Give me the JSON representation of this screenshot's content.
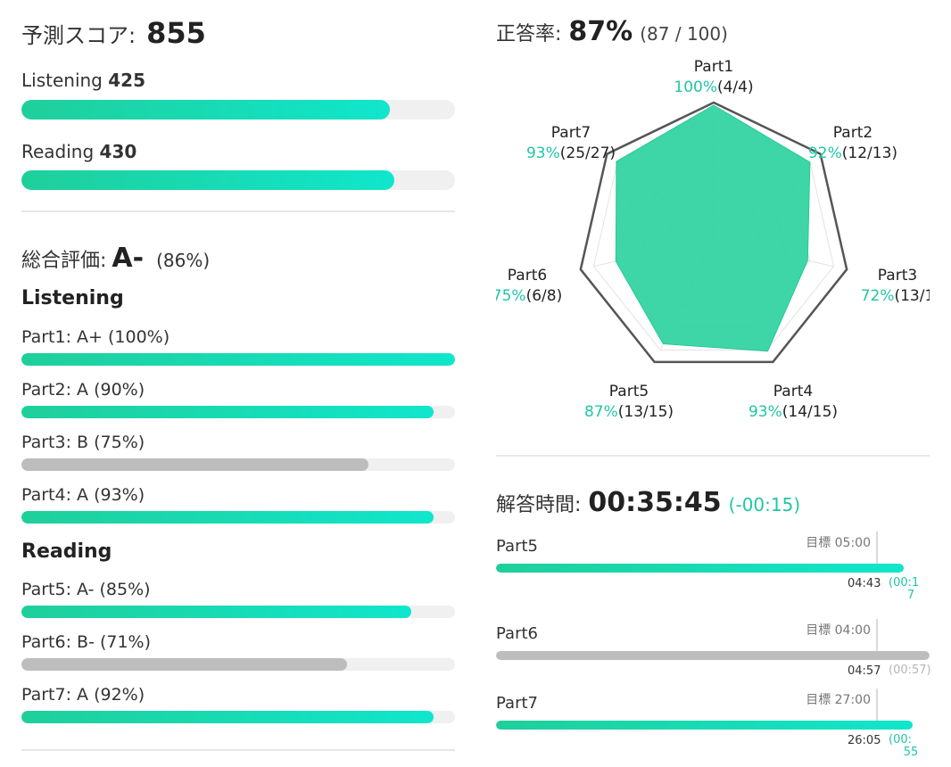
{
  "score": {
    "label": "予測スコア:",
    "value": "855",
    "listening_label": "Listening",
    "listening_value": "425",
    "listening_fraction": 0.85,
    "reading_label": "Reading",
    "reading_value": "430",
    "reading_fraction": 0.86
  },
  "grade": {
    "label": "総合評価:",
    "value": "A-",
    "percent": "(86%)",
    "listening_heading": "Listening",
    "reading_heading": "Reading",
    "parts": [
      {
        "label": "Part1: A+ (100%)",
        "fraction": 1.0,
        "color": "teal"
      },
      {
        "label": "Part2: A (90%)",
        "fraction": 0.95,
        "color": "teal"
      },
      {
        "label": "Part3: B (75%)",
        "fraction": 0.8,
        "color": "gray"
      },
      {
        "label": "Part4: A (93%)",
        "fraction": 0.95,
        "color": "teal"
      },
      {
        "label": "Part5: A- (85%)",
        "fraction": 0.9,
        "color": "teal"
      },
      {
        "label": "Part6: B- (71%)",
        "fraction": 0.75,
        "color": "gray"
      },
      {
        "label": "Part7: A (92%)",
        "fraction": 0.95,
        "color": "teal"
      }
    ]
  },
  "accuracy": {
    "label": "正答率:",
    "value": "87%",
    "detail": "(87 / 100)",
    "parts": [
      {
        "name": "Part1",
        "pct": "100%",
        "count": "(4/4)",
        "value": 1.0
      },
      {
        "name": "Part2",
        "pct": "92%",
        "count": "(12/13)",
        "value": 0.92
      },
      {
        "name": "Part3",
        "pct": "72%",
        "count": "(13/1",
        "value": 0.72
      },
      {
        "name": "Part4",
        "pct": "93%",
        "count": "(14/15)",
        "value": 0.93
      },
      {
        "name": "Part5",
        "pct": "87%",
        "count": "(13/15)",
        "value": 0.87
      },
      {
        "name": "Part6",
        "pct": "75%",
        "count": "(6/8)",
        "value": 0.75
      },
      {
        "name": "Part7",
        "pct": "93%",
        "count": "(25/27)",
        "value": 0.93
      }
    ]
  },
  "chart_data": {
    "type": "radar",
    "categories": [
      "Part1",
      "Part2",
      "Part3",
      "Part4",
      "Part5",
      "Part6",
      "Part7"
    ],
    "values": [
      100,
      92,
      72,
      93,
      87,
      75,
      93
    ],
    "range": [
      0,
      100
    ],
    "fill_color": "#2ed3a0"
  },
  "time": {
    "label": "解答時間:",
    "value": "00:35:45",
    "diff": "(-00:15)",
    "rows": [
      {
        "part": "Part5",
        "target": "目標 05:00",
        "actual": "04:43",
        "diff_open": "(00:1",
        "diff_close": "7",
        "fraction": 0.94,
        "color": "teal"
      },
      {
        "part": "Part6",
        "target": "目標 04:00",
        "actual": "04:57",
        "diff_open": "(00:57)",
        "diff_close": "",
        "fraction": 1.0,
        "color": "gray"
      },
      {
        "part": "Part7",
        "target": "目標 27:00",
        "actual": "26:05",
        "diff_open": "(00:",
        "diff_close": "55",
        "fraction": 0.96,
        "color": "teal"
      }
    ]
  },
  "colors": {
    "accent": "#1fd3a8",
    "muted_bar": "#bdbdbd",
    "track": "#f0f0f0"
  }
}
